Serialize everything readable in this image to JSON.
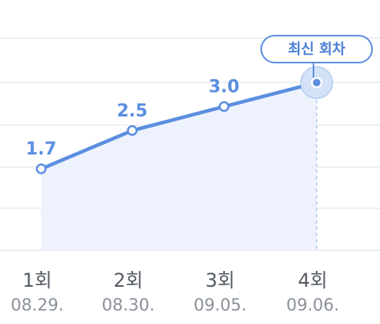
{
  "chart_data": {
    "type": "line",
    "title": "",
    "xlabel": "",
    "ylabel": "",
    "categories": [
      "1회",
      "2회",
      "3회",
      "4회"
    ],
    "dates": [
      "08.29.",
      "08.30.",
      "09.05.",
      "09.06."
    ],
    "series": [
      {
        "values": [
          1.7,
          2.5,
          3.0,
          3.5
        ]
      }
    ],
    "ylim": [
      0,
      4.2
    ],
    "grid": true,
    "legend": "none",
    "annotation": {
      "label": "최신 회차",
      "target_index": 3
    },
    "colors": {
      "line": "#5b8ee0",
      "area": "#eef2fd",
      "label": "#5b8ee0",
      "grid": "#e9ecf1"
    }
  }
}
